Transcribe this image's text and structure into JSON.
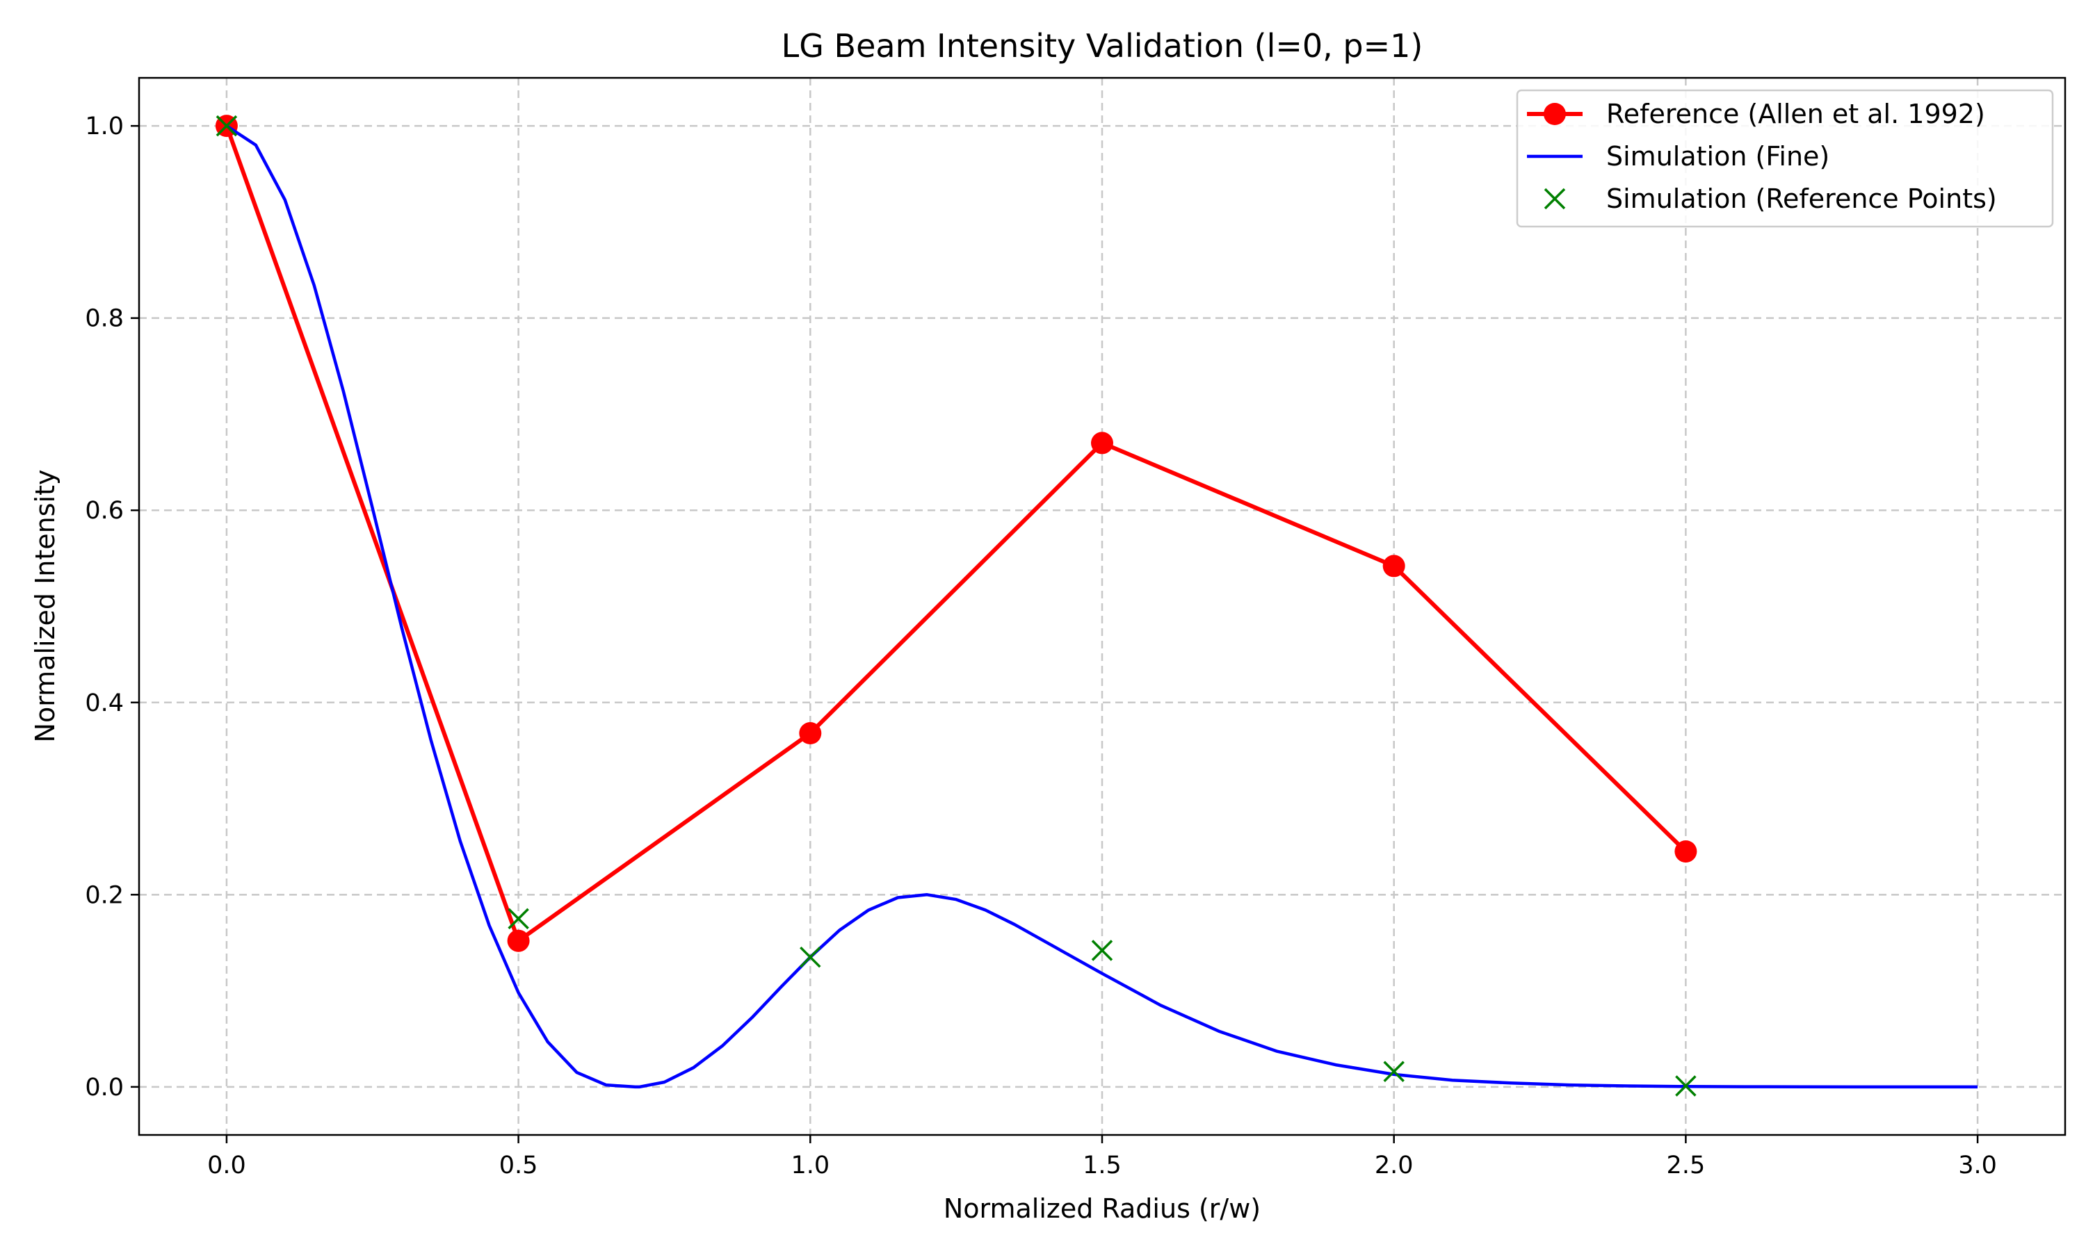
{
  "chart_data": {
    "type": "line",
    "title": "LG Beam Intensity Validation (l=0, p=1)",
    "xlabel": "Normalized Radius (r/w)",
    "ylabel": "Normalized Intensity",
    "xlim": [
      -0.15,
      3.15
    ],
    "ylim": [
      -0.05,
      1.05
    ],
    "xticks": [
      0.0,
      0.5,
      1.0,
      1.5,
      2.0,
      2.5,
      3.0
    ],
    "xtick_labels": [
      "0.0",
      "0.5",
      "1.0",
      "1.5",
      "2.0",
      "2.5",
      "3.0"
    ],
    "yticks": [
      0.0,
      0.2,
      0.4,
      0.6,
      0.8,
      1.0
    ],
    "ytick_labels": [
      "0.0",
      "0.2",
      "0.4",
      "0.6",
      "0.8",
      "1.0"
    ],
    "grid": true,
    "legend_position": "top-right",
    "series": [
      {
        "name": "Reference (Allen et al. 1992)",
        "style": "line-with-circle-markers",
        "color": "#ff0000",
        "x": [
          0.0,
          0.5,
          1.0,
          1.5,
          2.0,
          2.5
        ],
        "y": [
          1.0,
          0.152,
          0.368,
          0.67,
          0.542,
          0.245
        ]
      },
      {
        "name": "Simulation (Fine)",
        "style": "line",
        "color": "#0000ff",
        "x": [
          0.0,
          0.05,
          0.1,
          0.15,
          0.2,
          0.25,
          0.3,
          0.35,
          0.4,
          0.45,
          0.5,
          0.55,
          0.6,
          0.65,
          0.7,
          0.707,
          0.75,
          0.8,
          0.85,
          0.9,
          0.95,
          1.0,
          1.05,
          1.1,
          1.15,
          1.2,
          1.25,
          1.3,
          1.35,
          1.4,
          1.45,
          1.5,
          1.6,
          1.7,
          1.8,
          1.9,
          2.0,
          2.1,
          2.2,
          2.3,
          2.4,
          2.5,
          2.6,
          2.7,
          2.8,
          2.9,
          3.0
        ],
        "y": [
          1.0,
          0.98,
          0.923,
          0.834,
          0.724,
          0.602,
          0.478,
          0.361,
          0.256,
          0.168,
          0.098,
          0.047,
          0.015,
          0.002,
          0.0,
          0.0,
          0.005,
          0.02,
          0.043,
          0.072,
          0.104,
          0.135,
          0.163,
          0.184,
          0.197,
          0.2,
          0.195,
          0.184,
          0.169,
          0.152,
          0.135,
          0.118,
          0.085,
          0.058,
          0.037,
          0.023,
          0.013,
          0.007,
          0.004,
          0.002,
          0.001,
          0.0004,
          0.0002,
          0.0001,
          0.0,
          0.0,
          0.0
        ]
      },
      {
        "name": "Simulation (Reference Points)",
        "style": "x-markers",
        "color": "#008000",
        "x": [
          0.0,
          0.5,
          1.0,
          1.5,
          2.0,
          2.5
        ],
        "y": [
          1.0,
          0.175,
          0.135,
          0.142,
          0.016,
          0.001
        ]
      }
    ]
  }
}
